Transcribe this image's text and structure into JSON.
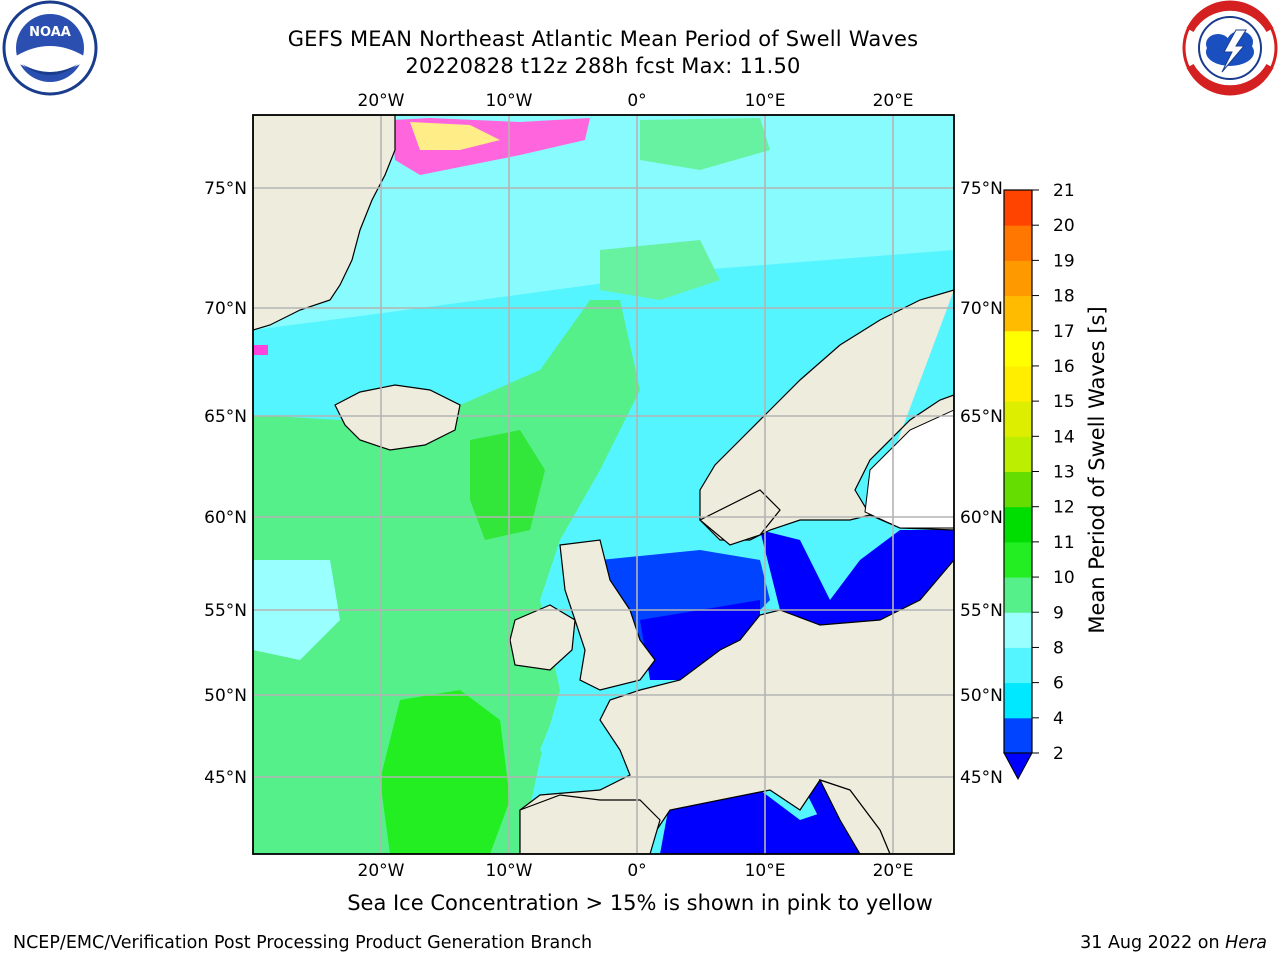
{
  "header": {
    "title_line1": "GEFS MEAN Northeast Atlantic Mean Period of Swell Waves",
    "title_line2": "20220828 t12z 288h fcst   Max: 11.50"
  },
  "logos": {
    "left": {
      "name": "NOAA",
      "text": "NOAA"
    },
    "right": {
      "name": "National Weather Service"
    }
  },
  "map": {
    "lon_labels": [
      "20°W",
      "10°W",
      "0°",
      "10°E",
      "20°E"
    ],
    "lat_labels": [
      "75°N",
      "70°N",
      "65°N",
      "60°N",
      "55°N",
      "50°N",
      "45°N"
    ]
  },
  "colorbar": {
    "label": "Mean Period of Swell Waves [s]",
    "ticks": [
      "2",
      "4",
      "6",
      "8",
      "9",
      "10",
      "11",
      "12",
      "13",
      "14",
      "15",
      "16",
      "17",
      "18",
      "19",
      "20",
      "21"
    ],
    "colors": [
      "#0044ff",
      "#00e8ff",
      "#55f5ff",
      "#99ffff",
      "#55f08a",
      "#22ee22",
      "#00dd00",
      "#66dd00",
      "#bbee00",
      "#ddee00",
      "#ffee00",
      "#ffff00",
      "#ffbb00",
      "#ff9900",
      "#ff7700",
      "#ff4400",
      "#ff1100"
    ],
    "extend_color": "#0000ff"
  },
  "footer": {
    "note": "Sea Ice Concentration > 15% is shown in pink to yellow",
    "credit_left": "NCEP/EMC/Verification Post Processing Product Generation Branch",
    "credit_right_date": "31 Aug 2022 on ",
    "credit_right_host": "Hera"
  }
}
